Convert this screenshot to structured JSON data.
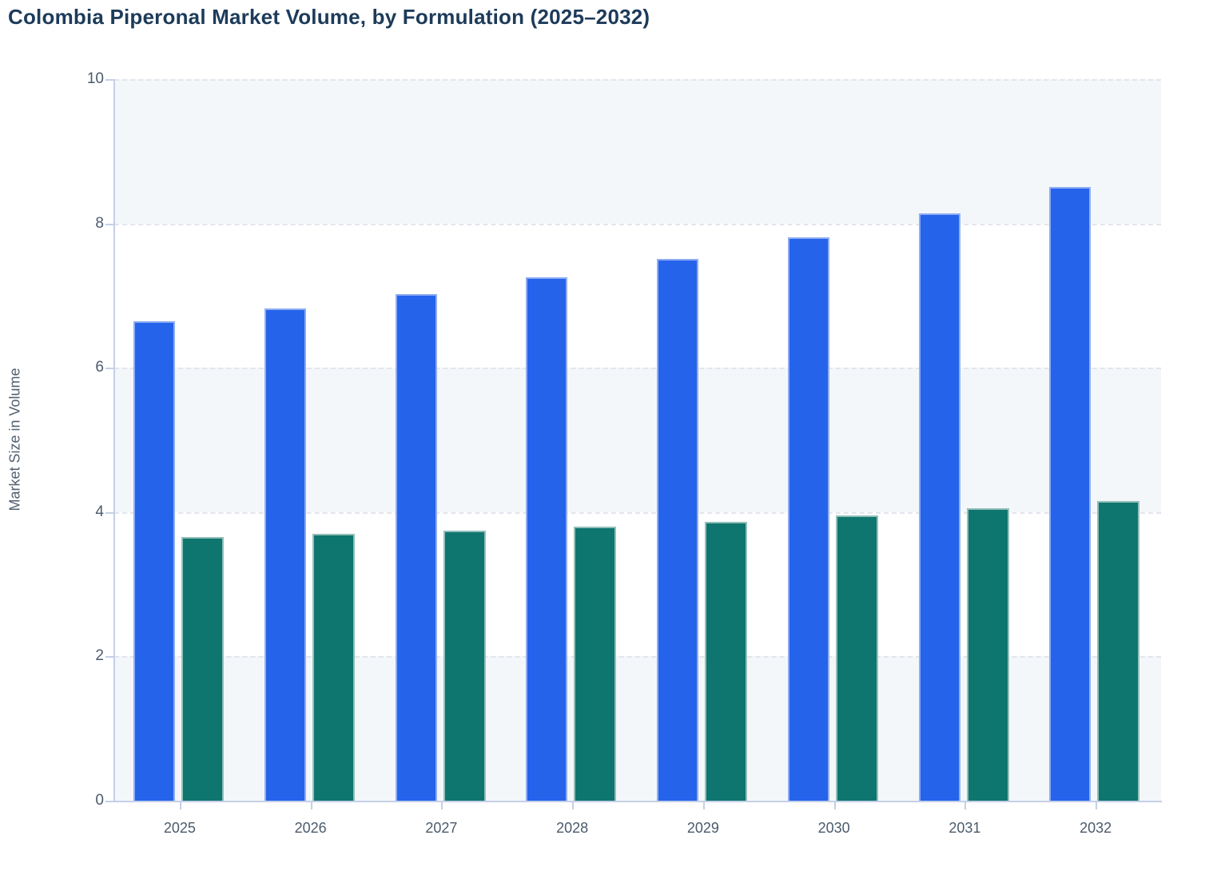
{
  "title": "Colombia Piperonal Market Volume, by Formulation (2025–2032)",
  "chart_data": {
    "type": "bar",
    "title": "Colombia Piperonal Market Volume, by Formulation (2025–2032)",
    "xlabel": "",
    "ylabel": "Market Size in Volume",
    "categories": [
      "2025",
      "2026",
      "2027",
      "2028",
      "2029",
      "2030",
      "2031",
      "2032"
    ],
    "series": [
      {
        "color": "#2563eb",
        "border_color": "#8fadf2",
        "values": [
          6.64,
          6.82,
          7.02,
          7.25,
          7.51,
          7.81,
          8.14,
          8.5
        ]
      },
      {
        "color": "#0e766e",
        "border_color": "#93c0ba",
        "values": [
          3.65,
          3.7,
          3.74,
          3.8,
          3.87,
          3.95,
          4.05,
          4.15
        ]
      }
    ],
    "ylim": [
      0,
      10
    ],
    "yticks": [
      0,
      2,
      4,
      6,
      8,
      10
    ],
    "grid": "horizontal-dashed",
    "legend_position": "none"
  },
  "colors": {
    "title_text": "#1d3b5a",
    "axis_text": "#4b5b6c",
    "axis_line": "#c5cfe8",
    "gridline": "#e2e5ec",
    "band_fill": "#f4f7fa",
    "band_fill_alt": "#ffffff",
    "series_blue": "#2563eb",
    "series_teal": "#0e766e"
  }
}
